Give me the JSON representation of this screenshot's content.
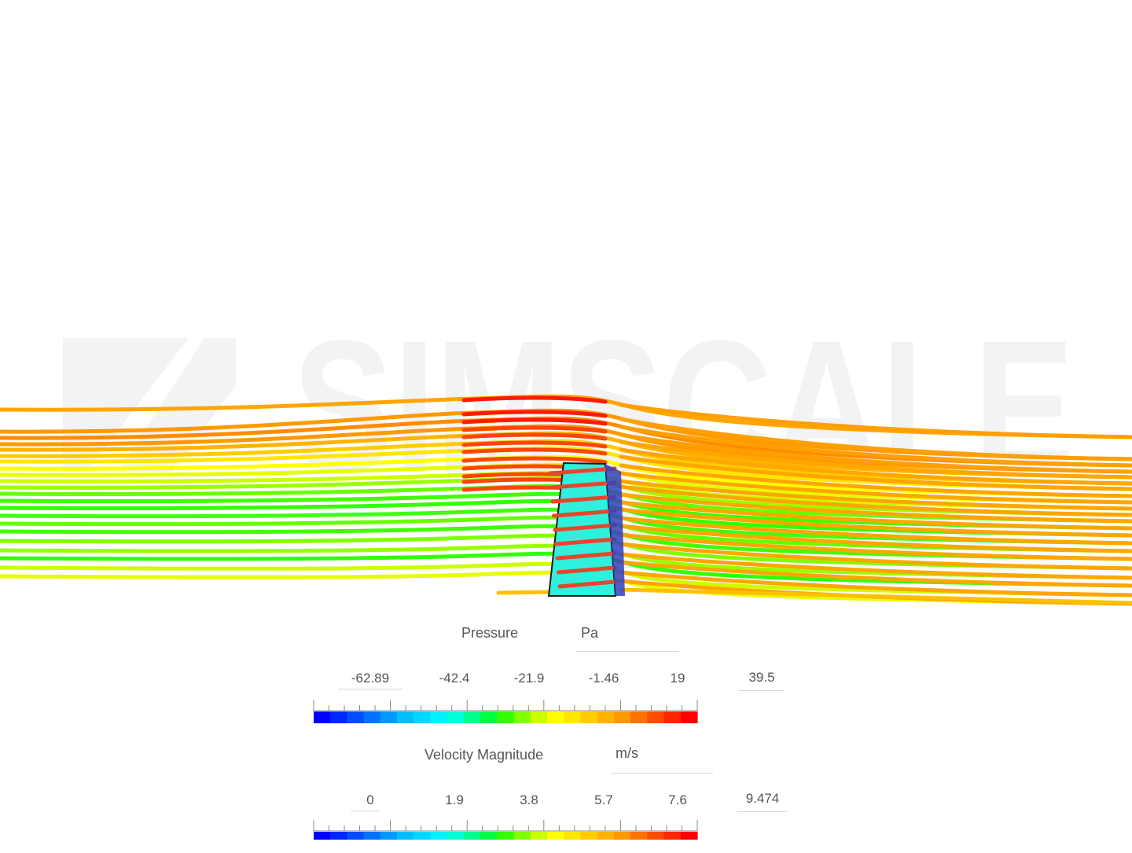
{
  "watermark": {
    "text": "SIMSCALE"
  },
  "colormap": [
    "#0000ff",
    "#0026ff",
    "#004cff",
    "#0073ff",
    "#0099ff",
    "#00bfff",
    "#00d9ff",
    "#00f2ff",
    "#00ffd5",
    "#00ff8c",
    "#00ff40",
    "#33ff00",
    "#80ff00",
    "#ccff00",
    "#ffff00",
    "#ffe600",
    "#ffcc00",
    "#ffb300",
    "#ff9900",
    "#ff7300",
    "#ff4c00",
    "#ff2600",
    "#ff0000"
  ],
  "colors": {
    "body": "#2ff0dc",
    "body_edge": "#1a1a1a",
    "stripe": "#e8452a",
    "watermark": "#f1f3f5"
  },
  "legends": [
    {
      "title": "Pressure",
      "unit": "Pa",
      "ticks": [
        "-62.89",
        "-42.4",
        "-21.9",
        "-1.46",
        "19"
      ],
      "max": "39.5"
    },
    {
      "title": "Velocity Magnitude",
      "unit": "m/s",
      "ticks": [
        "0",
        "1.9",
        "3.8",
        "5.7",
        "7.6"
      ],
      "max": "9.474"
    }
  ]
}
